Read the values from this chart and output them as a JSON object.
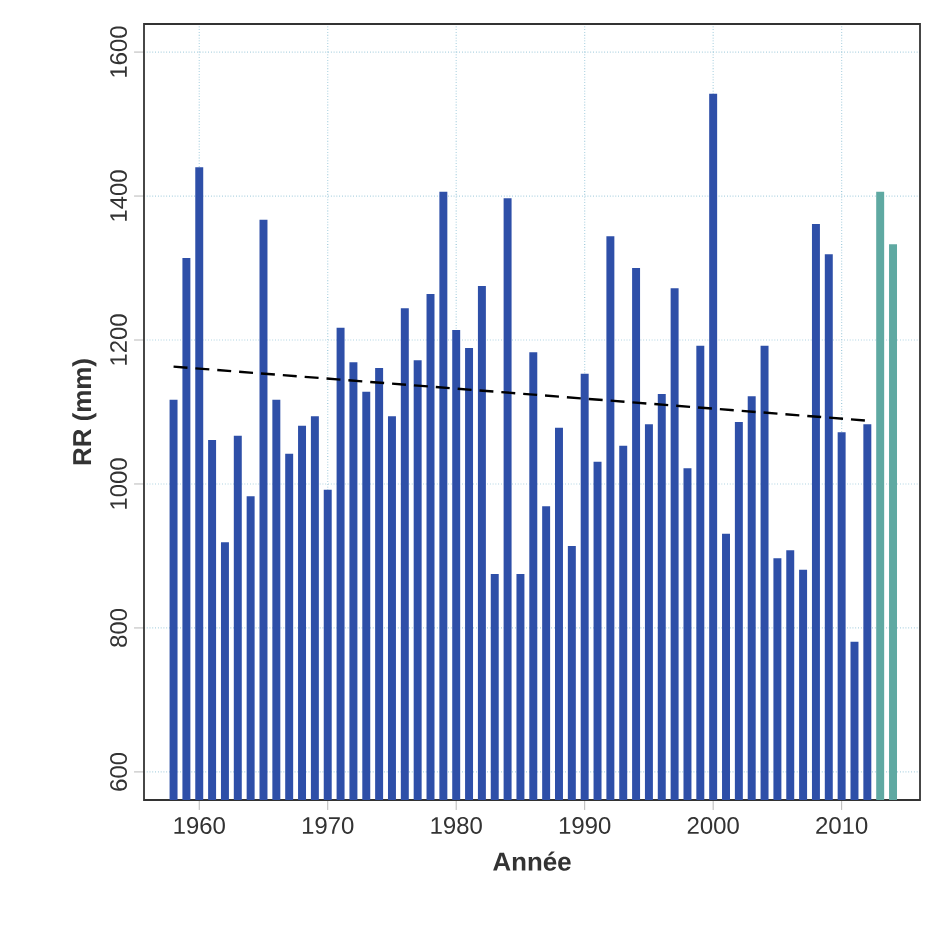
{
  "chart_data": {
    "type": "bar",
    "xlabel": "Année",
    "ylabel": "RR (mm)",
    "series": [
      {
        "x": [
          1958,
          1959,
          1960,
          1961,
          1962,
          1963,
          1964,
          1965,
          1966,
          1967,
          1968,
          1969,
          1970,
          1971,
          1972,
          1973,
          1974,
          1975,
          1976,
          1977,
          1978,
          1979,
          1980,
          1981,
          1982,
          1983,
          1984,
          1985,
          1986,
          1987,
          1988,
          1989,
          1990,
          1991,
          1992,
          1993,
          1994,
          1995,
          1996,
          1997,
          1998,
          1999,
          2000,
          2001,
          2002,
          2003,
          2004,
          2005,
          2006,
          2007,
          2008,
          2009,
          2010,
          2011,
          2012,
          2013,
          2014
        ],
        "values": [
          1117,
          1314,
          1440,
          1061,
          919,
          1067,
          983,
          1367,
          1117,
          1042,
          1081,
          1094,
          992,
          1217,
          1169,
          1128,
          1161,
          1094,
          1244,
          1172,
          1264,
          1406,
          1214,
          1189,
          1275,
          875,
          1397,
          875,
          1183,
          969,
          1078,
          914,
          1153,
          1031,
          1344,
          1053,
          1300,
          1083,
          1125,
          1272,
          1022,
          1192,
          1542,
          931,
          1086,
          1122,
          1192,
          897,
          908,
          881,
          1361,
          1319,
          1072,
          781,
          1083,
          1406,
          1333
        ],
        "colors": [
          "#2e4fa8",
          "#2e4fa8",
          "#2e4fa8",
          "#2e4fa8",
          "#2e4fa8",
          "#2e4fa8",
          "#2e4fa8",
          "#2e4fa8",
          "#2e4fa8",
          "#2e4fa8",
          "#2e4fa8",
          "#2e4fa8",
          "#2e4fa8",
          "#2e4fa8",
          "#2e4fa8",
          "#2e4fa8",
          "#2e4fa8",
          "#2e4fa8",
          "#2e4fa8",
          "#2e4fa8",
          "#2e4fa8",
          "#2e4fa8",
          "#2e4fa8",
          "#2e4fa8",
          "#2e4fa8",
          "#2e4fa8",
          "#2e4fa8",
          "#2e4fa8",
          "#2e4fa8",
          "#2e4fa8",
          "#2e4fa8",
          "#2e4fa8",
          "#2e4fa8",
          "#2e4fa8",
          "#2e4fa8",
          "#2e4fa8",
          "#2e4fa8",
          "#2e4fa8",
          "#2e4fa8",
          "#2e4fa8",
          "#2e4fa8",
          "#2e4fa8",
          "#2e4fa8",
          "#2e4fa8",
          "#2e4fa8",
          "#2e4fa8",
          "#2e4fa8",
          "#2e4fa8",
          "#2e4fa8",
          "#2e4fa8",
          "#2e4fa8",
          "#2e4fa8",
          "#2e4fa8",
          "#2e4fa8",
          "#2e4fa8",
          "#5fa9a2",
          "#5fa9a2"
        ]
      },
      {
        "type": "line",
        "x": [
          1958,
          2012
        ],
        "values": [
          1163,
          1088
        ],
        "color": "#000000",
        "line_style": "dashed"
      }
    ],
    "xlim": [
      1955.7,
      2016.1
    ],
    "ylim": [
      561,
      1639
    ],
    "xticks": [
      1960,
      1970,
      1980,
      1990,
      2000,
      2010
    ],
    "yticks": [
      600,
      800,
      1000,
      1200,
      1400,
      1600
    ],
    "grid": true
  }
}
